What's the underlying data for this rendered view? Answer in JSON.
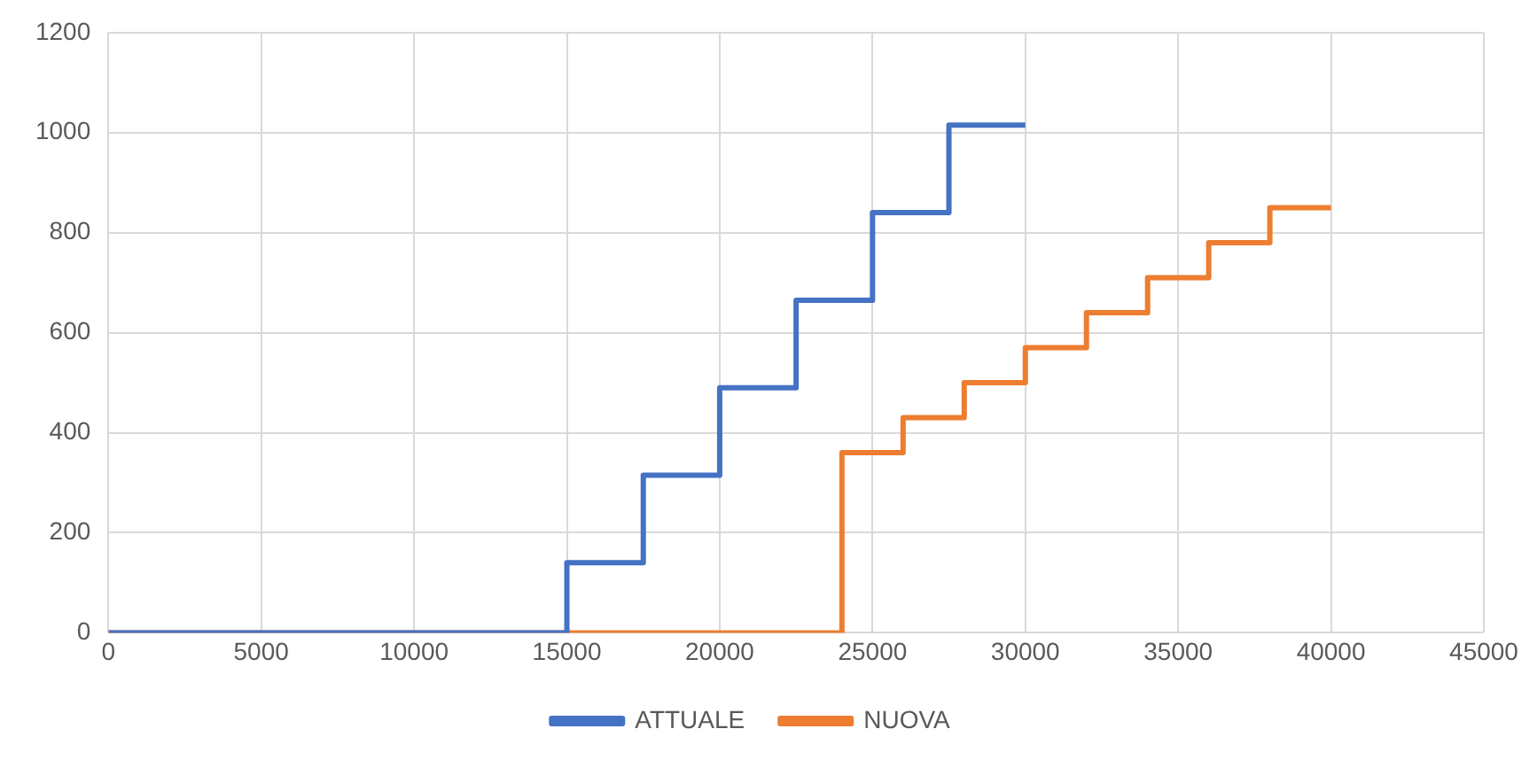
{
  "chart_data": {
    "type": "step",
    "xlim": [
      0,
      45000
    ],
    "xticks": [
      0,
      5000,
      10000,
      15000,
      20000,
      25000,
      30000,
      35000,
      40000,
      45000
    ],
    "ylim": [
      0,
      1200
    ],
    "yticks": [
      0,
      200,
      400,
      600,
      800,
      1000,
      1200
    ],
    "grid": true,
    "legend": "bottom",
    "marker": "none",
    "line_style": "solid",
    "series": [
      {
        "name": "ATTUALE",
        "color": "#4472c4",
        "x": [
          0,
          15000,
          17500,
          20000,
          22500,
          25000,
          27500,
          30000
        ],
        "values": [
          0,
          140,
          315,
          490,
          665,
          840,
          1015,
          1015
        ]
      },
      {
        "name": "NUOVA",
        "color": "#ed7d31",
        "x": [
          0,
          24000,
          26000,
          28000,
          30000,
          32000,
          34000,
          36000,
          38000,
          40000
        ],
        "values": [
          0,
          360,
          430,
          500,
          570,
          640,
          710,
          780,
          850,
          850
        ]
      }
    ]
  }
}
